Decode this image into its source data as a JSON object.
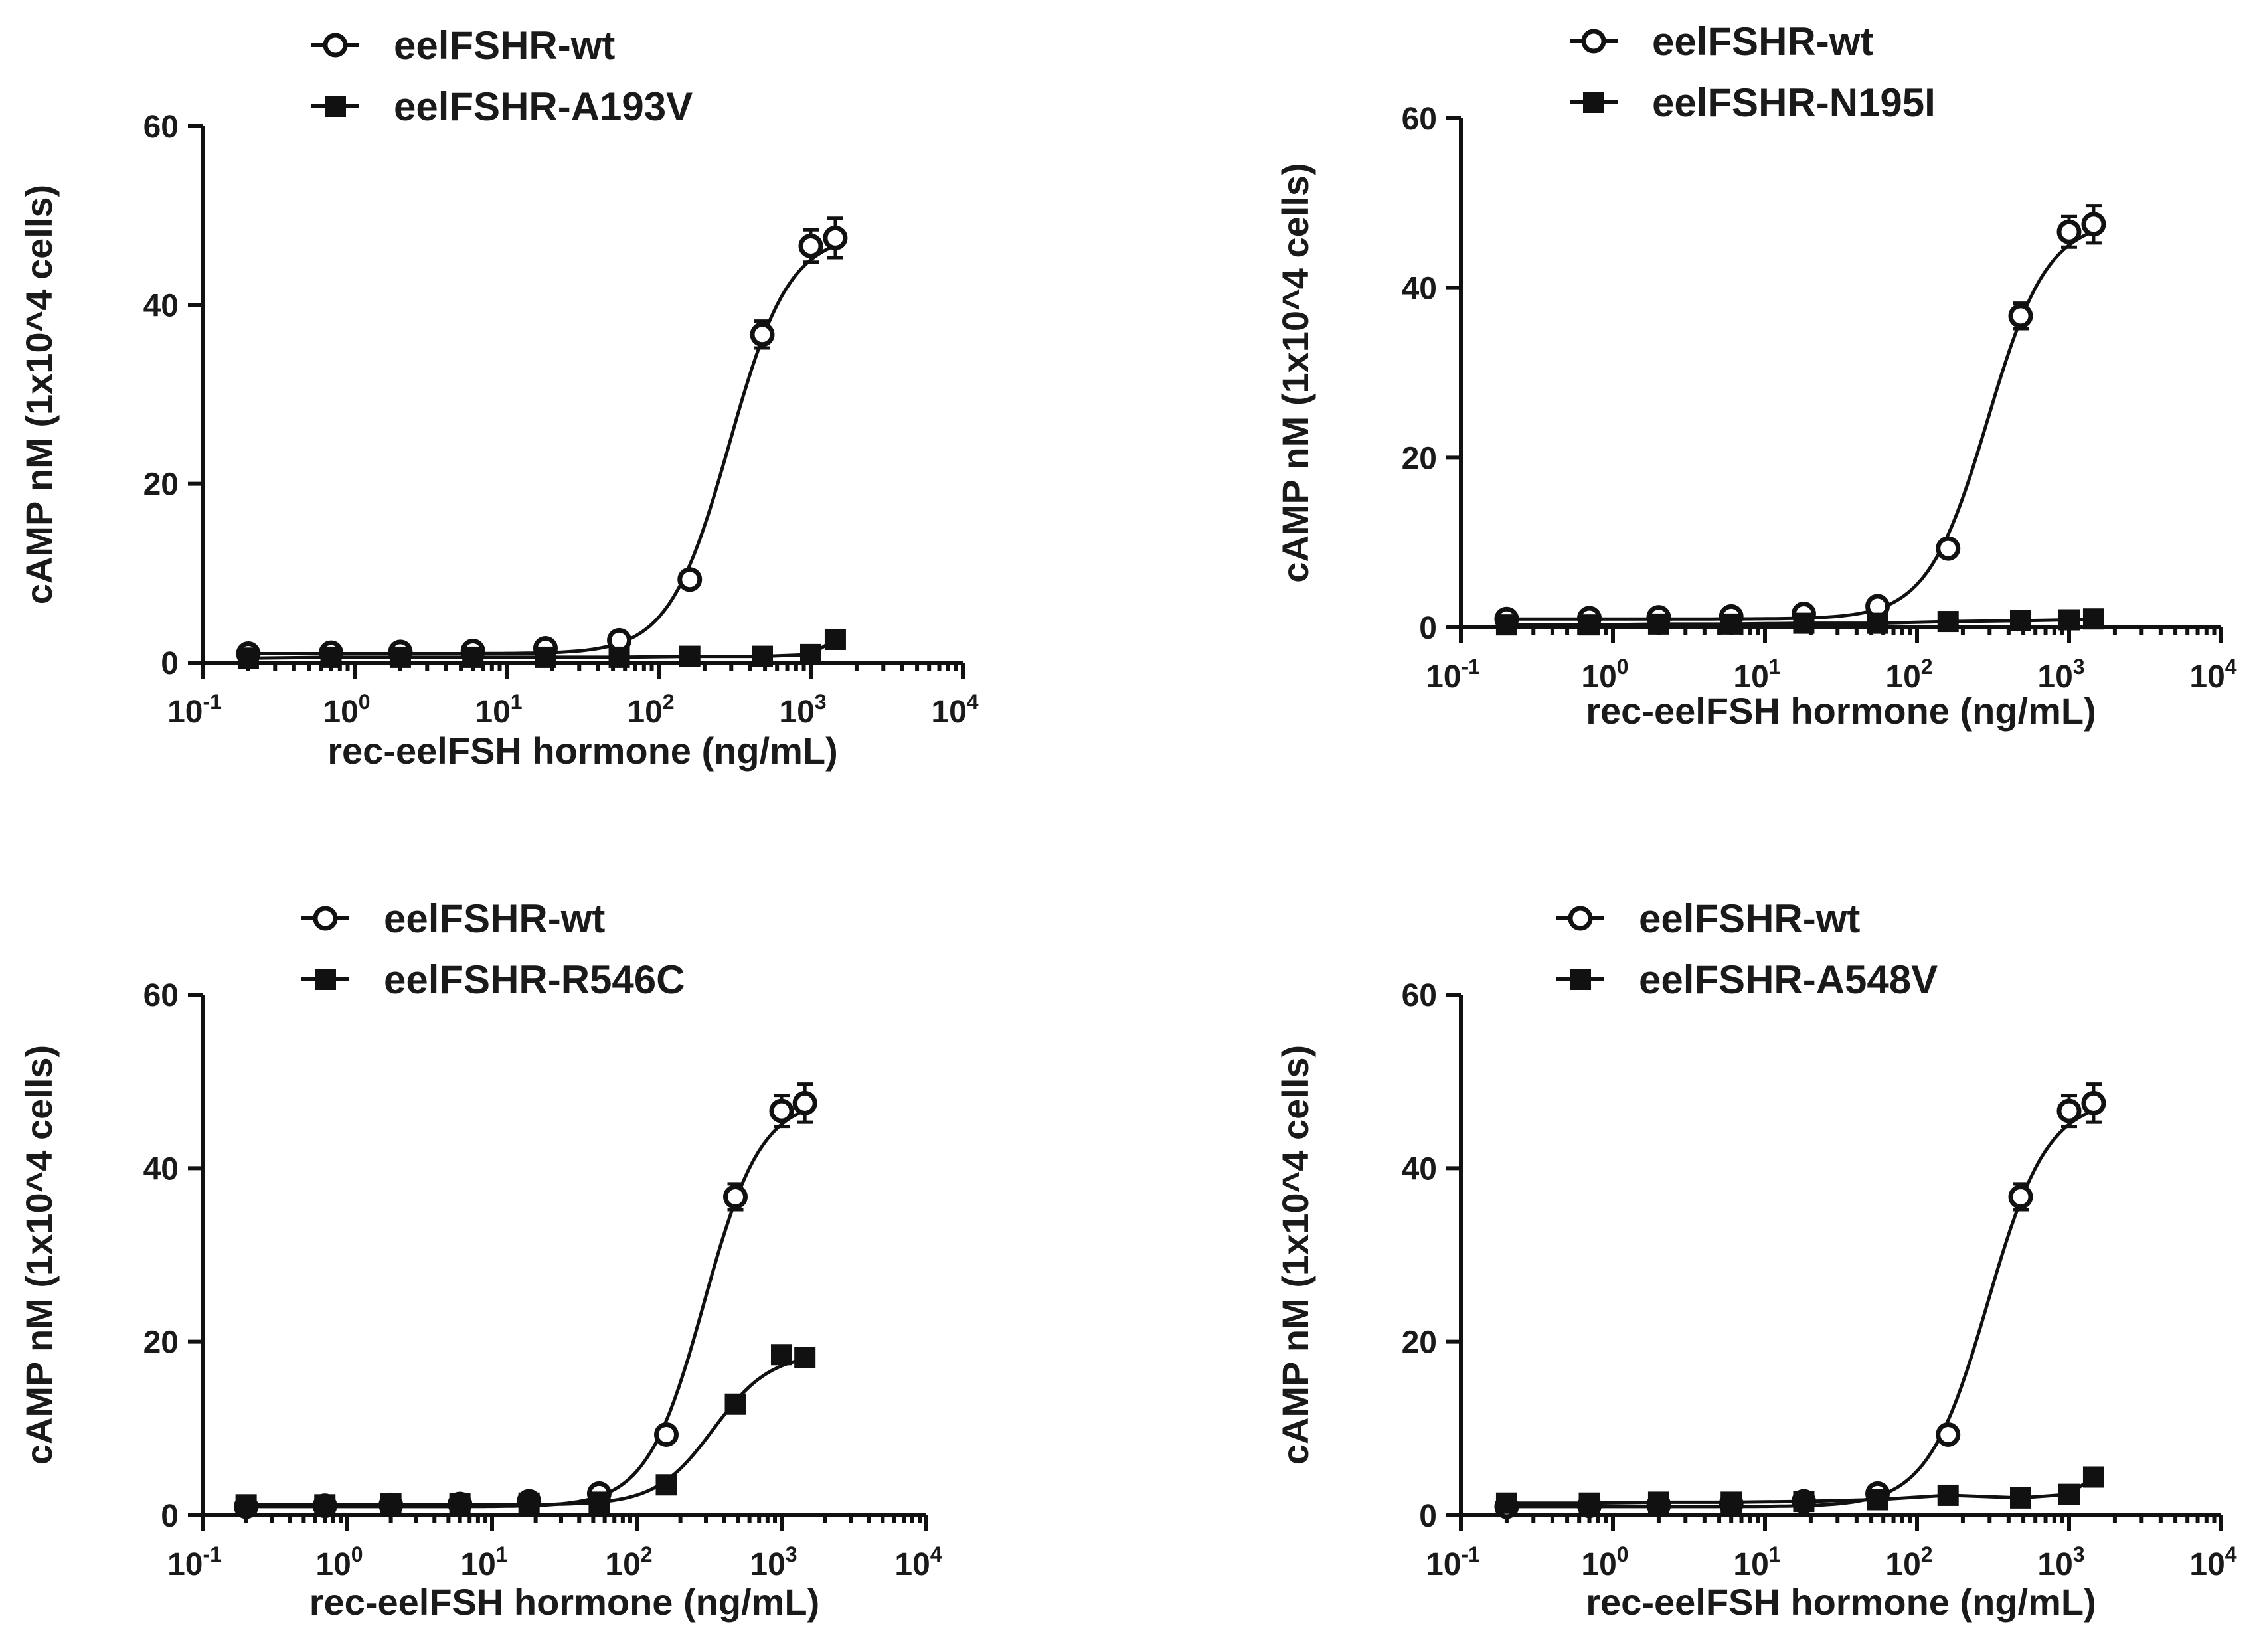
{
  "chart_data": [
    {
      "type": "scatter",
      "panel": "top-left",
      "title": "",
      "xlabel": "rec-eelFSH hormone (ng/mL)",
      "ylabel": "cAMP nM (1x10^4 cells)",
      "xscale": "log",
      "xlim": [
        0.1,
        10000
      ],
      "ylim": [
        0,
        60
      ],
      "yticks": [
        0,
        20,
        40,
        60
      ],
      "xticks": [
        {
          "base": "10",
          "exp": "-1"
        },
        {
          "base": "10",
          "exp": "0"
        },
        {
          "base": "10",
          "exp": "1"
        },
        {
          "base": "10",
          "exp": "2"
        },
        {
          "base": "10",
          "exp": "3"
        },
        {
          "base": "10",
          "exp": "4"
        }
      ],
      "legend_position": "top",
      "series": [
        {
          "name": "eelFSHR-wt",
          "marker": "open-circle",
          "x": [
            0.2,
            0.7,
            2,
            6,
            18,
            55,
            160,
            480,
            1000,
            1450
          ],
          "y": [
            1.0,
            1.1,
            1.2,
            1.3,
            1.6,
            2.5,
            9.3,
            36.7,
            46.6,
            47.5
          ],
          "err": [
            0.3,
            0.3,
            0.3,
            0.3,
            0.4,
            0.5,
            0.8,
            1.5,
            1.8,
            2.2
          ]
        },
        {
          "name": "eelFSHR-A193V",
          "marker": "filled-square",
          "x": [
            0.2,
            0.7,
            2,
            6,
            18,
            55,
            160,
            480,
            1000,
            1450
          ],
          "y": [
            0.5,
            0.6,
            0.6,
            0.6,
            0.6,
            0.6,
            0.7,
            0.7,
            0.9,
            2.6
          ],
          "err": [
            0.2,
            0.2,
            0.2,
            0.2,
            0.2,
            0.2,
            0.2,
            0.2,
            0.2,
            0.4
          ]
        }
      ]
    },
    {
      "type": "scatter",
      "panel": "top-right",
      "title": "",
      "xlabel": "rec-eelFSH hormone (ng/mL)",
      "ylabel": "cAMP nM (1x10^4 cells)",
      "xscale": "log",
      "xlim": [
        0.1,
        10000
      ],
      "ylim": [
        0,
        60
      ],
      "yticks": [
        0,
        20,
        40,
        60
      ],
      "xticks": [
        {
          "base": "10",
          "exp": "-1"
        },
        {
          "base": "10",
          "exp": "0"
        },
        {
          "base": "10",
          "exp": "1"
        },
        {
          "base": "10",
          "exp": "2"
        },
        {
          "base": "10",
          "exp": "3"
        },
        {
          "base": "10",
          "exp": "4"
        }
      ],
      "legend_position": "top",
      "series": [
        {
          "name": "eelFSHR-wt",
          "marker": "open-circle",
          "x": [
            0.2,
            0.7,
            2,
            6,
            18,
            55,
            160,
            480,
            1000,
            1450
          ],
          "y": [
            1.0,
            1.1,
            1.2,
            1.3,
            1.6,
            2.5,
            9.3,
            36.7,
            46.6,
            47.5
          ],
          "err": [
            0.3,
            0.3,
            0.3,
            0.3,
            0.4,
            0.5,
            0.8,
            1.5,
            1.8,
            2.2
          ]
        },
        {
          "name": "eelFSHR-N195I",
          "marker": "filled-square",
          "x": [
            0.2,
            0.7,
            2,
            6,
            18,
            55,
            160,
            480,
            1000,
            1450
          ],
          "y": [
            0.3,
            0.3,
            0.4,
            0.4,
            0.5,
            0.5,
            0.7,
            0.8,
            0.9,
            1.0
          ],
          "err": [
            0.2,
            0.2,
            0.2,
            0.2,
            0.2,
            0.2,
            0.2,
            0.2,
            0.2,
            0.3
          ]
        }
      ]
    },
    {
      "type": "scatter",
      "panel": "bottom-left",
      "title": "",
      "xlabel": "rec-eelFSH hormone (ng/mL)",
      "ylabel": "cAMP nM (1x10^4 cells)",
      "xscale": "log",
      "xlim": [
        0.1,
        10000
      ],
      "ylim": [
        0,
        60
      ],
      "yticks": [
        0,
        20,
        40,
        60
      ],
      "xticks": [
        {
          "base": "10",
          "exp": "-1"
        },
        {
          "base": "10",
          "exp": "0"
        },
        {
          "base": "10",
          "exp": "1"
        },
        {
          "base": "10",
          "exp": "2"
        },
        {
          "base": "10",
          "exp": "3"
        },
        {
          "base": "10",
          "exp": "4"
        }
      ],
      "legend_position": "top",
      "series": [
        {
          "name": "eelFSHR-wt",
          "marker": "open-circle",
          "x": [
            0.2,
            0.7,
            2,
            6,
            18,
            55,
            160,
            480,
            1000,
            1450
          ],
          "y": [
            1.0,
            1.1,
            1.2,
            1.3,
            1.6,
            2.5,
            9.3,
            36.7,
            46.6,
            47.5
          ],
          "err": [
            0.3,
            0.3,
            0.3,
            0.3,
            0.4,
            0.5,
            0.8,
            1.5,
            1.8,
            2.2
          ]
        },
        {
          "name": "eelFSHR-R546C",
          "marker": "filled-square",
          "x": [
            0.2,
            0.7,
            2,
            6,
            18,
            55,
            160,
            480,
            1000,
            1450
          ],
          "y": [
            1.2,
            1.2,
            1.3,
            1.3,
            1.4,
            1.5,
            3.5,
            12.8,
            18.5,
            18.2
          ],
          "err": [
            0.2,
            0.2,
            0.2,
            0.2,
            0.2,
            0.3,
            0.4,
            0.6,
            0.7,
            0.7
          ]
        }
      ]
    },
    {
      "type": "scatter",
      "panel": "bottom-right",
      "title": "",
      "xlabel": "rec-eelFSH hormone (ng/mL)",
      "ylabel": "cAMP nM (1x10^4 cells)",
      "xscale": "log",
      "xlim": [
        0.1,
        10000
      ],
      "ylim": [
        0,
        60
      ],
      "yticks": [
        0,
        20,
        40,
        60
      ],
      "xticks": [
        {
          "base": "10",
          "exp": "-1"
        },
        {
          "base": "10",
          "exp": "0"
        },
        {
          "base": "10",
          "exp": "1"
        },
        {
          "base": "10",
          "exp": "2"
        },
        {
          "base": "10",
          "exp": "3"
        },
        {
          "base": "10",
          "exp": "4"
        }
      ],
      "legend_position": "top",
      "series": [
        {
          "name": "eelFSHR-wt",
          "marker": "open-circle",
          "x": [
            0.2,
            0.7,
            2,
            6,
            18,
            55,
            160,
            480,
            1000,
            1450
          ],
          "y": [
            1.0,
            1.1,
            1.2,
            1.3,
            1.6,
            2.5,
            9.3,
            36.7,
            46.6,
            47.5
          ],
          "err": [
            0.3,
            0.3,
            0.3,
            0.3,
            0.4,
            0.5,
            0.8,
            1.5,
            1.8,
            2.2
          ]
        },
        {
          "name": "eelFSHR-A548V",
          "marker": "filled-square",
          "x": [
            0.2,
            0.7,
            2,
            6,
            18,
            55,
            160,
            480,
            1000,
            1450
          ],
          "y": [
            1.4,
            1.4,
            1.5,
            1.5,
            1.6,
            1.8,
            2.3,
            2.0,
            2.4,
            4.4
          ],
          "err": [
            0.2,
            0.2,
            0.2,
            0.2,
            0.2,
            0.2,
            0.3,
            0.3,
            0.3,
            0.4
          ]
        }
      ]
    }
  ],
  "colors": {
    "ink": "#111111",
    "background": "#ffffff"
  }
}
